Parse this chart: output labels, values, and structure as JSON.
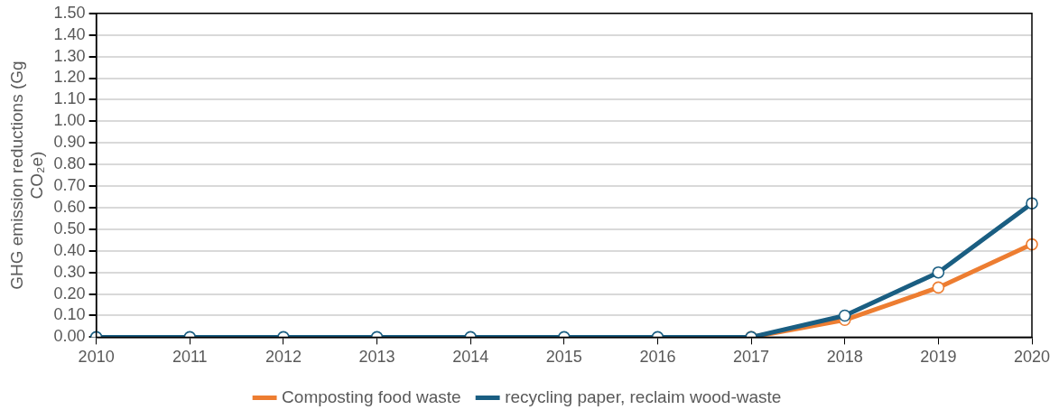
{
  "chart_data": {
    "type": "line",
    "ylabel": "GHG emission reductions (Gg CO₂e)",
    "categories": [
      "2010",
      "2011",
      "2012",
      "2013",
      "2014",
      "2015",
      "2016",
      "2017",
      "2018",
      "2019",
      "2020"
    ],
    "series": [
      {
        "name": "Composting food waste",
        "color": "#ed7d31",
        "values": [
          null,
          null,
          null,
          null,
          null,
          null,
          null,
          0,
          0.08,
          0.23,
          0.43
        ]
      },
      {
        "name": "recycling paper, reclaim wood-waste",
        "color": "#1a5e82",
        "values": [
          0,
          0,
          0,
          0,
          0,
          0,
          0,
          0,
          0.1,
          0.3,
          0.62
        ]
      }
    ],
    "ylim": [
      0,
      1.5
    ],
    "yticks": [
      {
        "value": 0,
        "label": "0.00"
      },
      {
        "value": 0.1,
        "label": "0.10"
      },
      {
        "value": 0.2,
        "label": "0.20"
      },
      {
        "value": 0.3,
        "label": "0.30"
      },
      {
        "value": 0.4,
        "label": "0.40"
      },
      {
        "value": 0.5,
        "label": "0.50"
      },
      {
        "value": 0.6,
        "label": "0.60"
      },
      {
        "value": 0.7,
        "label": "0.70"
      },
      {
        "value": 0.8,
        "label": "0.80"
      },
      {
        "value": 0.9,
        "label": "0.90"
      },
      {
        "value": 1.0,
        "label": "1.00"
      },
      {
        "value": 1.1,
        "label": "1.10"
      },
      {
        "value": 1.2,
        "label": "1.20"
      },
      {
        "value": 1.3,
        "label": "1.30"
      },
      {
        "value": 1.4,
        "label": "1.40"
      },
      {
        "value": 1.5,
        "label": "1.50"
      }
    ],
    "grid": "y",
    "legend": "bottom",
    "marker": "circle",
    "line_style": "solid"
  }
}
